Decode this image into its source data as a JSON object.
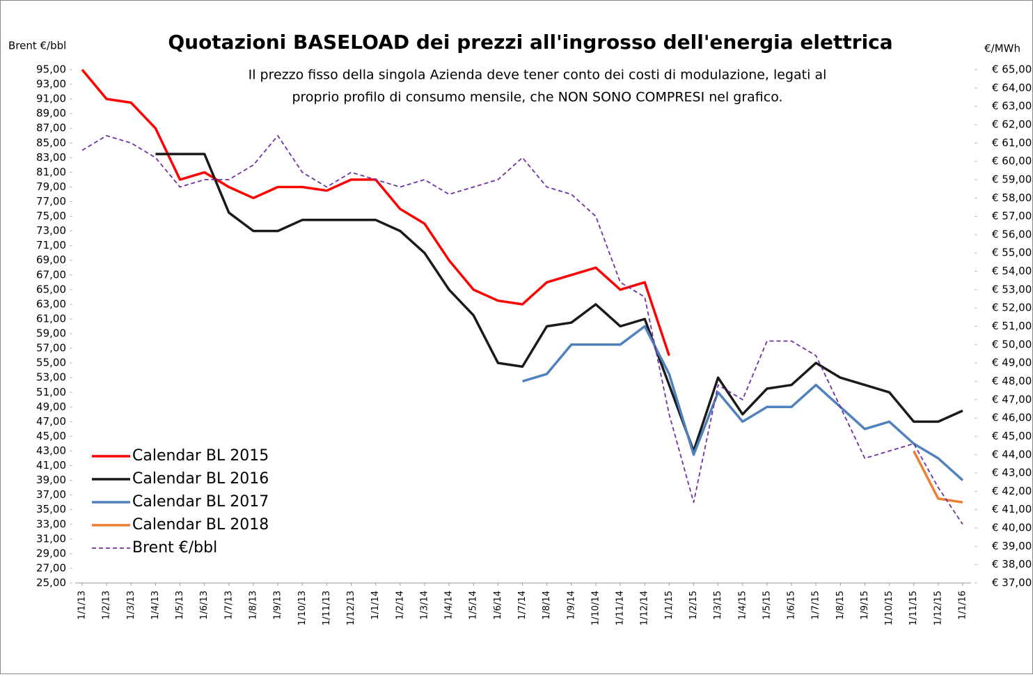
{
  "chart_data": {
    "type": "line",
    "title": "Quotazioni BASELOAD dei prezzi all'ingrosso dell'energia elettrica",
    "subtitle_lines": [
      "Il prezzo fisso della singola  Azienda deve tener conto dei costi di modulazione, legati al",
      "proprio profilo di consumo mensile, che NON SONO COMPRESI nel grafico."
    ],
    "y_label": "Brent €/bbl",
    "y2_label": "€/MWh",
    "legend": "lower left",
    "categories": [
      "1/1/13",
      "1/2/13",
      "1/3/13",
      "1/4/13",
      "1/5/13",
      "1/6/13",
      "1/7/13",
      "1/8/13",
      "1/9/13",
      "1/10/13",
      "1/11/13",
      "1/12/13",
      "1/1/14",
      "1/2/14",
      "1/3/14",
      "1/4/14",
      "1/5/14",
      "1/6/14",
      "1/7/14",
      "1/8/14",
      "1/9/14",
      "1/10/14",
      "1/11/14",
      "1/12/14",
      "1/1/15",
      "1/2/15",
      "1/3/15",
      "1/4/15",
      "1/5/15",
      "1/6/15",
      "1/7/15",
      "1/8/15",
      "1/9/15",
      "1/10/15",
      "1/11/15",
      "1/12/15",
      "1/1/16"
    ],
    "ylim": [
      25,
      95
    ],
    "yticks": [
      {
        "value": 95,
        "label": "95,00"
      },
      {
        "value": 93,
        "label": "93,00"
      },
      {
        "value": 91,
        "label": "91,00"
      },
      {
        "value": 89,
        "label": "89,00"
      },
      {
        "value": 87,
        "label": "87,00"
      },
      {
        "value": 85,
        "label": "85,00"
      },
      {
        "value": 83,
        "label": "83,00"
      },
      {
        "value": 81,
        "label": "81,00"
      },
      {
        "value": 79,
        "label": "79,00"
      },
      {
        "value": 77,
        "label": "77,00"
      },
      {
        "value": 75,
        "label": "75,00"
      },
      {
        "value": 73,
        "label": "73,00"
      },
      {
        "value": 71,
        "label": "71,00"
      },
      {
        "value": 69,
        "label": "69,00"
      },
      {
        "value": 67,
        "label": "67,00"
      },
      {
        "value": 65,
        "label": "65,00"
      },
      {
        "value": 63,
        "label": "63,00"
      },
      {
        "value": 61,
        "label": "61,00"
      },
      {
        "value": 59,
        "label": "59,00"
      },
      {
        "value": 57,
        "label": "57,00"
      },
      {
        "value": 55,
        "label": "55,00"
      },
      {
        "value": 53,
        "label": "53,00"
      },
      {
        "value": 51,
        "label": "51,00"
      },
      {
        "value": 49,
        "label": "49,00"
      },
      {
        "value": 47,
        "label": "47,00"
      },
      {
        "value": 45,
        "label": "45,00"
      },
      {
        "value": 43,
        "label": "43,00"
      },
      {
        "value": 41,
        "label": "41,00"
      },
      {
        "value": 39,
        "label": "39,00"
      },
      {
        "value": 37,
        "label": "37,00"
      },
      {
        "value": 35,
        "label": "35,00"
      },
      {
        "value": 33,
        "label": "33,00"
      },
      {
        "value": 31,
        "label": "31,00"
      },
      {
        "value": 29,
        "label": "29,00"
      },
      {
        "value": 27,
        "label": "27,00"
      },
      {
        "value": 25,
        "label": "25,00"
      }
    ],
    "y2lim": [
      37,
      65
    ],
    "y2ticks": [
      {
        "value": 65,
        "label": "€ 65,00"
      },
      {
        "value": 64,
        "label": "€ 64,00"
      },
      {
        "value": 63,
        "label": "€ 63,00"
      },
      {
        "value": 62,
        "label": "€ 62,00"
      },
      {
        "value": 61,
        "label": "€ 61,00"
      },
      {
        "value": 60,
        "label": "€ 60,00"
      },
      {
        "value": 59,
        "label": "€ 59,00"
      },
      {
        "value": 58,
        "label": "€ 58,00"
      },
      {
        "value": 57,
        "label": "€ 57,00"
      },
      {
        "value": 56,
        "label": "€ 56,00"
      },
      {
        "value": 55,
        "label": "€ 55,00"
      },
      {
        "value": 54,
        "label": "€ 54,00"
      },
      {
        "value": 53,
        "label": "€ 53,00"
      },
      {
        "value": 52,
        "label": "€ 52,00"
      },
      {
        "value": 51,
        "label": "€ 51,00"
      },
      {
        "value": 50,
        "label": "€ 50,00"
      },
      {
        "value": 49,
        "label": "€ 49,00"
      },
      {
        "value": 48,
        "label": "€ 48,00"
      },
      {
        "value": 47,
        "label": "€ 47,00"
      },
      {
        "value": 46,
        "label": "€ 46,00"
      },
      {
        "value": 45,
        "label": "€ 45,00"
      },
      {
        "value": 44,
        "label": "€ 44,00"
      },
      {
        "value": 43,
        "label": "€ 43,00"
      },
      {
        "value": 42,
        "label": "€ 42,00"
      },
      {
        "value": 41,
        "label": "€ 41,00"
      },
      {
        "value": 40,
        "label": "€ 40,00"
      },
      {
        "value": 39,
        "label": "€ 39,00"
      },
      {
        "value": 38,
        "label": "€ 38,00"
      },
      {
        "value": 37,
        "label": "€ 37,00"
      }
    ],
    "series": [
      {
        "name": "Calendar BL 2015",
        "color": "#ff0000",
        "axis": "y2",
        "dashed": false,
        "values": [
          65.0,
          63.4,
          63.2,
          61.8,
          59.0,
          59.4,
          58.6,
          58.0,
          58.6,
          58.6,
          58.4,
          59.0,
          59.0,
          57.4,
          56.6,
          54.6,
          53.0,
          52.4,
          52.2,
          53.4,
          53.8,
          54.2,
          53.0,
          53.4,
          49.4,
          null,
          null,
          null,
          null,
          null,
          null,
          null,
          null,
          null,
          null,
          null,
          null
        ]
      },
      {
        "name": "Calendar BL 2016",
        "color": "#1a1a1a",
        "axis": "y2",
        "dashed": false,
        "values": [
          null,
          null,
          null,
          60.4,
          60.4,
          60.4,
          57.2,
          56.2,
          56.2,
          56.8,
          56.8,
          56.8,
          56.8,
          56.2,
          55.0,
          53.0,
          51.6,
          49.0,
          48.8,
          51.0,
          51.2,
          52.2,
          51.0,
          51.4,
          47.8,
          44.2,
          48.2,
          46.2,
          47.6,
          47.8,
          49.0,
          48.2,
          47.8,
          47.4,
          45.8,
          45.8,
          46.4
        ]
      },
      {
        "name": "Calendar BL 2017",
        "color": "#4f81bd",
        "axis": "y2",
        "dashed": false,
        "values": [
          null,
          null,
          null,
          null,
          null,
          null,
          null,
          null,
          null,
          null,
          null,
          null,
          null,
          null,
          null,
          null,
          null,
          null,
          48.0,
          48.4,
          50.0,
          50.0,
          50.0,
          51.0,
          48.4,
          44.0,
          47.4,
          45.8,
          46.6,
          46.6,
          47.8,
          46.6,
          45.4,
          45.8,
          44.6,
          43.8,
          42.6
        ]
      },
      {
        "name": "Calendar BL 2018",
        "color": "#ed7d31",
        "axis": "y2",
        "dashed": false,
        "values": [
          null,
          null,
          null,
          null,
          null,
          null,
          null,
          null,
          null,
          null,
          null,
          null,
          null,
          null,
          null,
          null,
          null,
          null,
          null,
          null,
          null,
          null,
          null,
          null,
          null,
          null,
          null,
          null,
          null,
          null,
          null,
          null,
          null,
          null,
          44.2,
          41.6,
          41.4
        ]
      },
      {
        "name": "Brent €/bbl",
        "color": "#7030a0",
        "axis": "y",
        "dashed": true,
        "values": [
          84,
          86,
          85,
          83,
          79,
          80,
          80,
          82,
          86,
          81,
          79,
          81,
          80,
          79,
          80,
          78,
          79,
          80,
          83,
          79,
          78,
          75,
          66,
          64,
          48,
          36,
          52,
          50,
          58,
          58,
          56,
          49,
          42,
          43,
          44,
          38,
          33
        ]
      }
    ]
  }
}
